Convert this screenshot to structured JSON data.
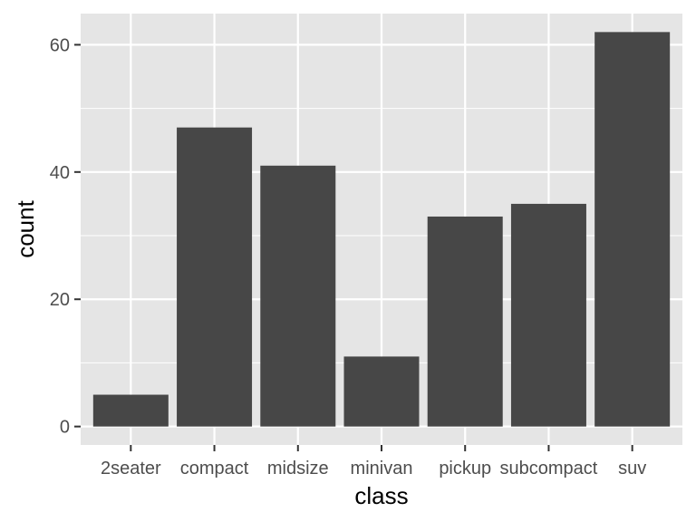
{
  "chart_data": {
    "type": "bar",
    "categories": [
      "2seater",
      "compact",
      "midsize",
      "minivan",
      "pickup",
      "subcompact",
      "suv"
    ],
    "values": [
      5,
      47,
      41,
      11,
      33,
      35,
      62
    ],
    "xlabel": "class",
    "ylabel": "count",
    "ylim": [
      -2.9,
      64.9
    ],
    "yticks": [
      0,
      20,
      40,
      60
    ],
    "grid": true,
    "colors": {
      "panel_background": "#e5e5e5",
      "grid": "#ffffff",
      "bar_fill": "#474747",
      "tick_text": "#4d4d4d",
      "axis_title": "#000000"
    }
  }
}
